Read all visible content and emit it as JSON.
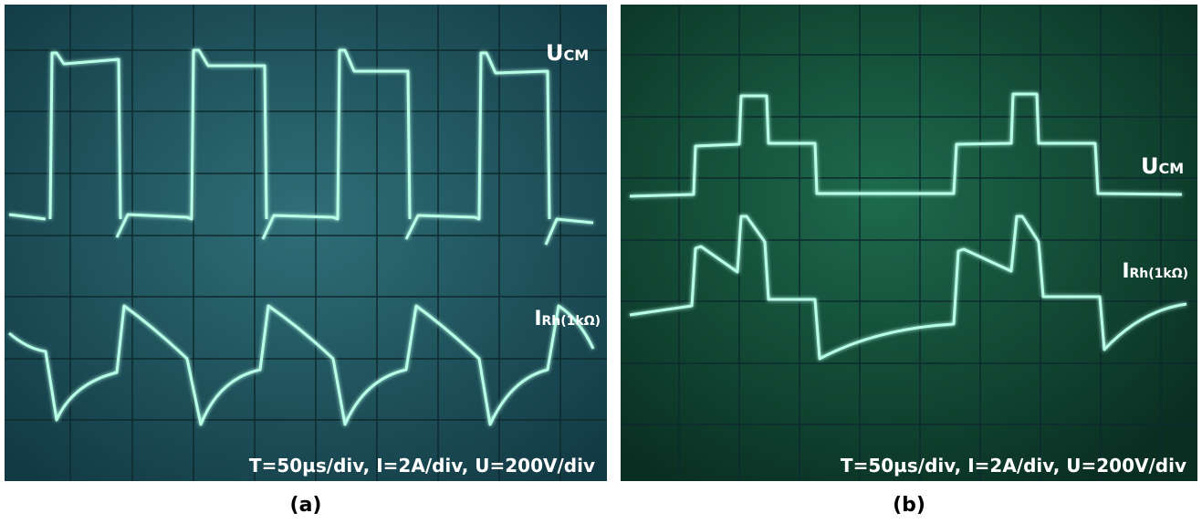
{
  "panels": [
    {
      "caption": "(a)",
      "voltage_label": {
        "main": "U",
        "sub": "CM"
      },
      "current_label": {
        "main": "I",
        "sub": "Rh(1kΩ)"
      },
      "settings": "T=50µs/div, I=2A/div, U=200V/div"
    },
    {
      "caption": "(b)",
      "voltage_label": {
        "main": "U",
        "sub": "CM"
      },
      "current_label": {
        "main": "I",
        "sub": "Rh(1kΩ)"
      },
      "settings": "T=50µs/div, I=2A/div, U=200V/div"
    }
  ]
}
